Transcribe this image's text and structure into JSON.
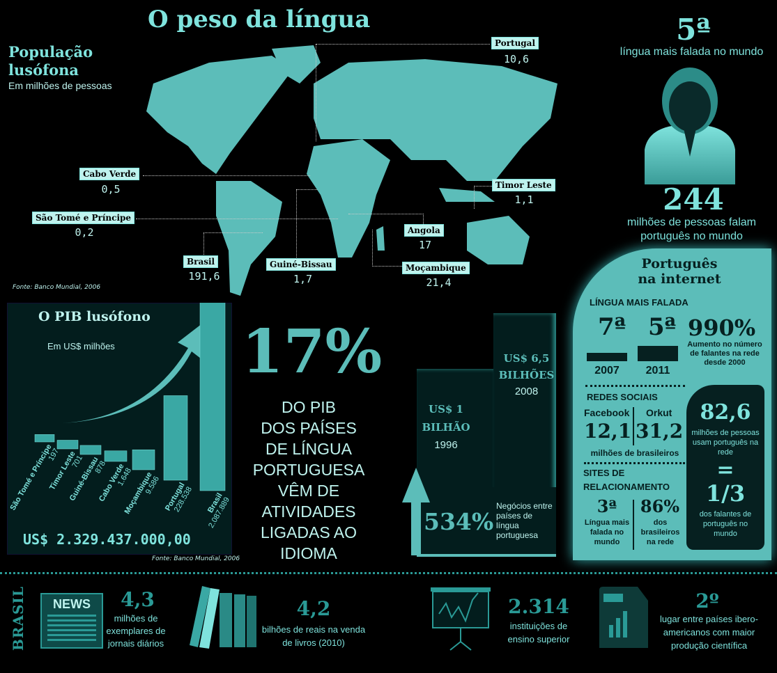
{
  "title": "O peso da língua",
  "population": {
    "title_line1": "População",
    "title_line2": "lusófona",
    "subtitle": "Em milhões de pessoas",
    "source": "Fonte: Banco Mundial, 2006",
    "countries": [
      {
        "name": "Portugal",
        "value": "10,6"
      },
      {
        "name": "Cabo Verde",
        "value": "0,5"
      },
      {
        "name": "São Tomé e Príncipe",
        "value": "0,2"
      },
      {
        "name": "Brasil",
        "value": "191,6"
      },
      {
        "name": "Guiné-Bissau",
        "value": "1,7"
      },
      {
        "name": "Angola",
        "value": "17"
      },
      {
        "name": "Moçambique",
        "value": "21,4"
      },
      {
        "name": "Timor Leste",
        "value": "1,1"
      }
    ]
  },
  "rank": {
    "value": "5ª",
    "caption": "língua mais falada no mundo",
    "speakers": "244",
    "speakers_caption_1": "milhões de pessoas falam",
    "speakers_caption_2": "português no mundo"
  },
  "pib": {
    "title": "O PIB lusófono",
    "subtitle": "Em US$ milhões",
    "total": "US$ 2.329.437.000,00",
    "source": "Fonte: Banco Mundial, 2006"
  },
  "chart_data": {
    "type": "bar",
    "title": "O PIB lusófono",
    "ylabel": "Em US$ milhões",
    "categories": [
      "São Tomé e Príncipe",
      "Timor Leste",
      "Guiné-Bissau",
      "Cabo Verde",
      "Moçambique",
      "Portugal",
      "Brasil"
    ],
    "values": [
      197,
      701,
      878,
      1648,
      9586,
      228538,
      2087889
    ],
    "value_labels": [
      "197",
      "701",
      "878",
      "1.648",
      "9.586",
      "228.538",
      "2.087.889"
    ]
  },
  "share": {
    "big": "17%",
    "lines": [
      "DO PIB",
      "DOS PAÍSES",
      "DE LÍNGUA",
      "PORTUGUESA",
      "VÊM DE",
      "ATIVIDADES",
      "LIGADAS AO",
      "IDIOMA"
    ]
  },
  "trade": {
    "b1_value": "US$ 1",
    "b1_unit": "BILHÃO",
    "b1_year": "1996",
    "b2_value": "US$ 6,5",
    "b2_unit": "BILHÕES",
    "b2_year": "2008",
    "growth": "534%",
    "growth_caption": "Negócios entre países de língua portuguesa"
  },
  "internet": {
    "title_1": "Português",
    "title_2": "na internet",
    "lingua_header": "LÍNGUA MAIS FALADA",
    "rank_2007": "7ª",
    "year_2007": "2007",
    "rank_2011": "5ª",
    "year_2011": "2011",
    "growth": "990%",
    "growth_caption": "Aumento no número de falantes na rede desde 2000",
    "social_header": "REDES SOCIAIS",
    "facebook_label": "Facebook",
    "facebook_value": "12,1",
    "orkut_label": "Orkut",
    "orkut_value": "31,2",
    "social_caption": "milhões de brasileiros",
    "sites_header_1": "SITES DE",
    "sites_header_2": "RELACIONAMENTO",
    "sites_rank": "3ª",
    "sites_rank_caption": "Língua mais falada no mundo",
    "sites_pct": "86%",
    "sites_pct_caption": "dos brasileiros na rede",
    "users": "82,6",
    "users_caption": "milhões de pessoas usam português na rede",
    "equals": "=",
    "fraction": "1/3",
    "fraction_caption": "dos falantes de português no mundo"
  },
  "brasil": {
    "label": "BRASIL",
    "items": [
      {
        "icon": "newspaper-icon",
        "icon_text": "NEWS",
        "value": "4,3",
        "caption": "milhões de exemplares de jornais diários"
      },
      {
        "icon": "books-icon",
        "value": "4,2",
        "caption": "bilhões de reais na venda de livros (2010)"
      },
      {
        "icon": "chart-board-icon",
        "value": "2.314",
        "caption": "instituições de ensino superior"
      },
      {
        "icon": "bar-chart-document-icon",
        "value": "2º",
        "caption": "lugar entre países ibero-americanos com maior produção científica"
      }
    ]
  },
  "colors": {
    "teal": "#5cbdb9",
    "light": "#7fe3dd",
    "dark": "#031d1d"
  }
}
